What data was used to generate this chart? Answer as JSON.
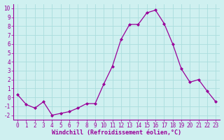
{
  "x": [
    0,
    1,
    2,
    3,
    4,
    5,
    6,
    7,
    8,
    9,
    10,
    11,
    12,
    13,
    14,
    15,
    16,
    17,
    18,
    19,
    20,
    21,
    22,
    23
  ],
  "y": [
    0.3,
    -0.8,
    -1.2,
    -0.5,
    -2.0,
    -1.8,
    -1.6,
    -1.2,
    -0.7,
    -0.7,
    1.5,
    3.5,
    6.5,
    8.2,
    8.2,
    9.5,
    9.8,
    8.3,
    6.0,
    3.2,
    1.7,
    2.0,
    0.7,
    -0.5
  ],
  "line_color": "#990099",
  "marker": "D",
  "marker_size": 2,
  "linewidth": 0.9,
  "xlabel": "Windchill (Refroidissement éolien,°C)",
  "ylim": [
    -2.5,
    10.5
  ],
  "xlim": [
    -0.5,
    23.5
  ],
  "yticks": [
    -2,
    -1,
    0,
    1,
    2,
    3,
    4,
    5,
    6,
    7,
    8,
    9,
    10
  ],
  "xticks": [
    0,
    1,
    2,
    3,
    4,
    5,
    6,
    7,
    8,
    9,
    10,
    11,
    12,
    13,
    14,
    15,
    16,
    17,
    18,
    19,
    20,
    21,
    22,
    23
  ],
  "bg_color": "#cff0f0",
  "grid_color": "#aadddd",
  "tick_label_color": "#990099",
  "xlabel_color": "#990099",
  "xlabel_fontsize": 6,
  "tick_fontsize": 5.5
}
